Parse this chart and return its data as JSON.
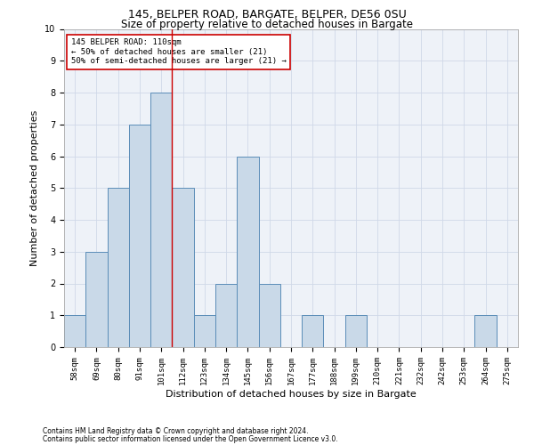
{
  "title1": "145, BELPER ROAD, BARGATE, BELPER, DE56 0SU",
  "title2": "Size of property relative to detached houses in Bargate",
  "xlabel": "Distribution of detached houses by size in Bargate",
  "ylabel": "Number of detached properties",
  "categories": [
    "58sqm",
    "69sqm",
    "80sqm",
    "91sqm",
    "101sqm",
    "112sqm",
    "123sqm",
    "134sqm",
    "145sqm",
    "156sqm",
    "167sqm",
    "177sqm",
    "188sqm",
    "199sqm",
    "210sqm",
    "221sqm",
    "232sqm",
    "242sqm",
    "253sqm",
    "264sqm",
    "275sqm"
  ],
  "values": [
    1,
    3,
    5,
    7,
    8,
    5,
    1,
    2,
    6,
    2,
    0,
    1,
    0,
    1,
    0,
    0,
    0,
    0,
    0,
    1,
    0
  ],
  "bar_color": "#c9d9e8",
  "bar_edge_color": "#5b8db8",
  "vline_x": 4.5,
  "vline_color": "#cc0000",
  "ylim": [
    0,
    10
  ],
  "yticks": [
    0,
    1,
    2,
    3,
    4,
    5,
    6,
    7,
    8,
    9,
    10
  ],
  "annotation_text": "145 BELPER ROAD: 110sqm\n← 50% of detached houses are smaller (21)\n50% of semi-detached houses are larger (21) →",
  "annotation_box_color": "#ffffff",
  "annotation_box_edge": "#cc0000",
  "footnote1": "Contains HM Land Registry data © Crown copyright and database right 2024.",
  "footnote2": "Contains public sector information licensed under the Open Government Licence v3.0.",
  "grid_color": "#d0d8e8",
  "background_color": "#eef2f8",
  "title1_fontsize": 9,
  "title2_fontsize": 8.5,
  "xlabel_fontsize": 8,
  "ylabel_fontsize": 8,
  "tick_fontsize": 6.5,
  "annotation_fontsize": 6.5,
  "footnote_fontsize": 5.5
}
